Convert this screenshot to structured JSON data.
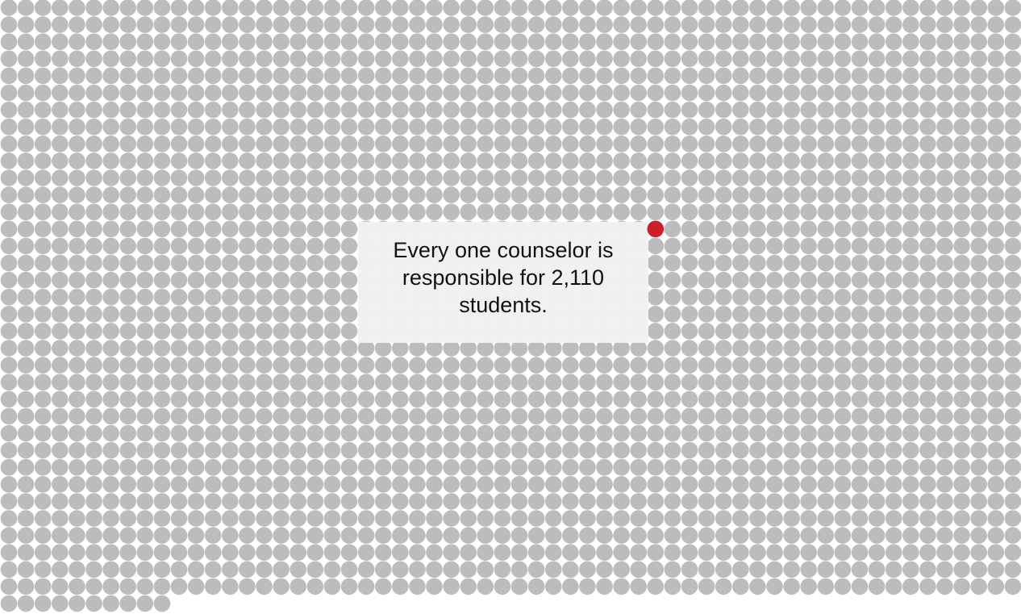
{
  "chart_data": {
    "type": "unit-dot-grid",
    "total_units": 2110,
    "highlighted_units": 1,
    "caption": "Every one counselor is responsible for 2,110 students."
  },
  "colors": {
    "unit": "#bcbcbe",
    "highlight": "#cc1f26",
    "callout_background": "#f1f1f2",
    "text": "#111111"
  }
}
